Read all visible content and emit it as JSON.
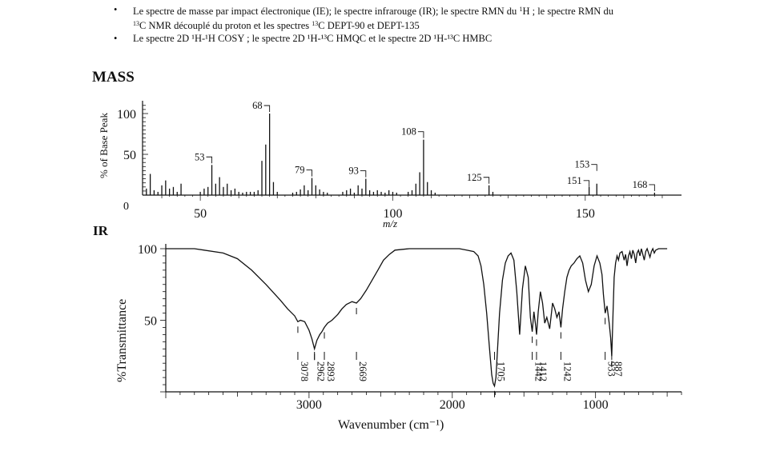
{
  "bullets": [
    {
      "pre": "Le spectre de masse par impact électronique (IE); le spectre infrarouge (IR); le spectre RMN du ",
      "sup1": "1",
      "mid": "H ; le spectre RMN du",
      "l2sup": "13",
      "l2": "C NMR découplé du proton et les spectres ",
      "l2sup2": "13",
      "l2b": "C DEPT-90 et DEPT-135"
    },
    {
      "text": "Le spectre 2D ¹H-¹H COSY ; le spectre 2D ¹H-¹³C HMQC et le spectre 2D ¹H-¹³C HMBC"
    }
  ],
  "bullet_symbol": "•",
  "chart_data": [
    {
      "type": "bar",
      "title": "MASS",
      "xlabel": "m/z",
      "ylabel": "% of Base Peak",
      "xlim": [
        35,
        175
      ],
      "ylim": [
        0,
        120
      ],
      "xticks": [
        50,
        100,
        150
      ],
      "yticks": [
        50,
        100
      ],
      "y0_label": "0",
      "x": [
        36,
        37,
        38,
        39,
        40,
        41,
        42,
        43,
        44,
        45,
        50,
        51,
        52,
        53,
        54,
        55,
        56,
        57,
        58,
        59,
        60,
        61,
        62,
        63,
        64,
        65,
        66,
        67,
        68,
        69,
        70,
        74,
        75,
        76,
        77,
        78,
        79,
        80,
        81,
        82,
        83,
        87,
        88,
        89,
        90,
        91,
        92,
        93,
        94,
        95,
        96,
        97,
        98,
        99,
        100,
        101,
        104,
        105,
        106,
        107,
        108,
        109,
        110,
        111,
        125,
        126,
        151,
        153,
        168
      ],
      "values": [
        8,
        26,
        6,
        4,
        12,
        18,
        8,
        10,
        4,
        14,
        4,
        8,
        10,
        37,
        14,
        22,
        10,
        14,
        6,
        8,
        4,
        3,
        4,
        4,
        4,
        6,
        42,
        62,
        100,
        16,
        4,
        3,
        4,
        7,
        12,
        6,
        21,
        12,
        7,
        4,
        3,
        4,
        6,
        8,
        3,
        12,
        8,
        20,
        6,
        4,
        6,
        4,
        3,
        6,
        4,
        3,
        4,
        6,
        14,
        28,
        68,
        16,
        6,
        3,
        12,
        4,
        10,
        14,
        3
      ],
      "labels": [
        {
          "x": 53,
          "text": "53"
        },
        {
          "x": 68,
          "text": "68"
        },
        {
          "x": 79,
          "text": "79"
        },
        {
          "x": 93,
          "text": "93"
        },
        {
          "x": 108,
          "text": "108"
        },
        {
          "x": 125,
          "text": "125"
        },
        {
          "x": 151,
          "text": "151"
        },
        {
          "x": 153,
          "text": "153"
        },
        {
          "x": 168,
          "text": "168"
        }
      ]
    },
    {
      "type": "line",
      "title": "IR",
      "xlabel": "Wavenumber (cm⁻¹)",
      "ylabel": "%Transmittance",
      "xlim": [
        4000,
        400
      ],
      "ylim": [
        0,
        100
      ],
      "xticks": [
        3000,
        2000,
        1000
      ],
      "yticks": [
        50,
        100
      ],
      "x": [
        4000,
        3800,
        3600,
        3500,
        3400,
        3300,
        3200,
        3150,
        3100,
        3078,
        3060,
        3030,
        3000,
        2980,
        2962,
        2945,
        2925,
        2910,
        2893,
        2870,
        2840,
        2800,
        2770,
        2740,
        2700,
        2669,
        2640,
        2600,
        2560,
        2520,
        2480,
        2440,
        2400,
        2300,
        2200,
        2100,
        2000,
        1950,
        1900,
        1850,
        1820,
        1800,
        1780,
        1760,
        1740,
        1725,
        1715,
        1705,
        1695,
        1685,
        1670,
        1650,
        1630,
        1610,
        1590,
        1570,
        1550,
        1530,
        1510,
        1490,
        1470,
        1455,
        1442,
        1430,
        1420,
        1412,
        1400,
        1385,
        1370,
        1355,
        1340,
        1320,
        1300,
        1285,
        1270,
        1255,
        1242,
        1230,
        1215,
        1200,
        1185,
        1170,
        1150,
        1130,
        1110,
        1090,
        1070,
        1050,
        1030,
        1010,
        990,
        970,
        955,
        945,
        933,
        920,
        905,
        895,
        887,
        878,
        870,
        860,
        850,
        840,
        830,
        815,
        800,
        790,
        780,
        770,
        760,
        750,
        740,
        730,
        720,
        710,
        700,
        690,
        680,
        670,
        660,
        650,
        640,
        630,
        620,
        610,
        600,
        590,
        580,
        560,
        540,
        520,
        500
      ],
      "values": [
        100,
        100,
        97,
        93,
        85,
        75,
        64,
        58,
        53,
        49,
        50,
        49,
        43,
        37,
        30,
        36,
        40,
        42,
        45,
        48,
        50,
        54,
        58,
        61,
        63,
        62,
        65,
        71,
        78,
        85,
        92,
        96,
        99,
        100,
        100,
        100,
        100,
        100,
        99,
        98,
        95,
        88,
        75,
        55,
        30,
        12,
        6,
        4,
        10,
        28,
        55,
        78,
        90,
        95,
        97,
        92,
        70,
        40,
        72,
        88,
        80,
        52,
        42,
        56,
        48,
        40,
        56,
        70,
        62,
        48,
        52,
        44,
        62,
        58,
        52,
        56,
        45,
        58,
        70,
        80,
        85,
        88,
        90,
        93,
        95,
        90,
        78,
        70,
        75,
        88,
        95,
        90,
        82,
        68,
        55,
        60,
        48,
        38,
        25,
        55,
        80,
        90,
        95,
        92,
        97,
        98,
        92,
        96,
        88,
        95,
        98,
        93,
        99,
        96,
        90,
        97,
        99,
        95,
        100,
        96,
        92,
        98,
        100,
        97,
        94,
        98,
        100,
        97,
        99,
        100,
        100,
        100,
        100
      ],
      "annotations": [
        {
          "x": 3078,
          "text": "3078"
        },
        {
          "x": 2962,
          "text": "2962"
        },
        {
          "x": 2893,
          "text": "2893"
        },
        {
          "x": 2669,
          "text": "2669"
        },
        {
          "x": 1705,
          "text": "1705"
        },
        {
          "x": 1442,
          "text": "1442"
        },
        {
          "x": 1412,
          "text": "1412"
        },
        {
          "x": 1242,
          "text": "1242"
        },
        {
          "x": 933,
          "text": "933"
        },
        {
          "x": 887,
          "text": "887"
        }
      ]
    }
  ]
}
